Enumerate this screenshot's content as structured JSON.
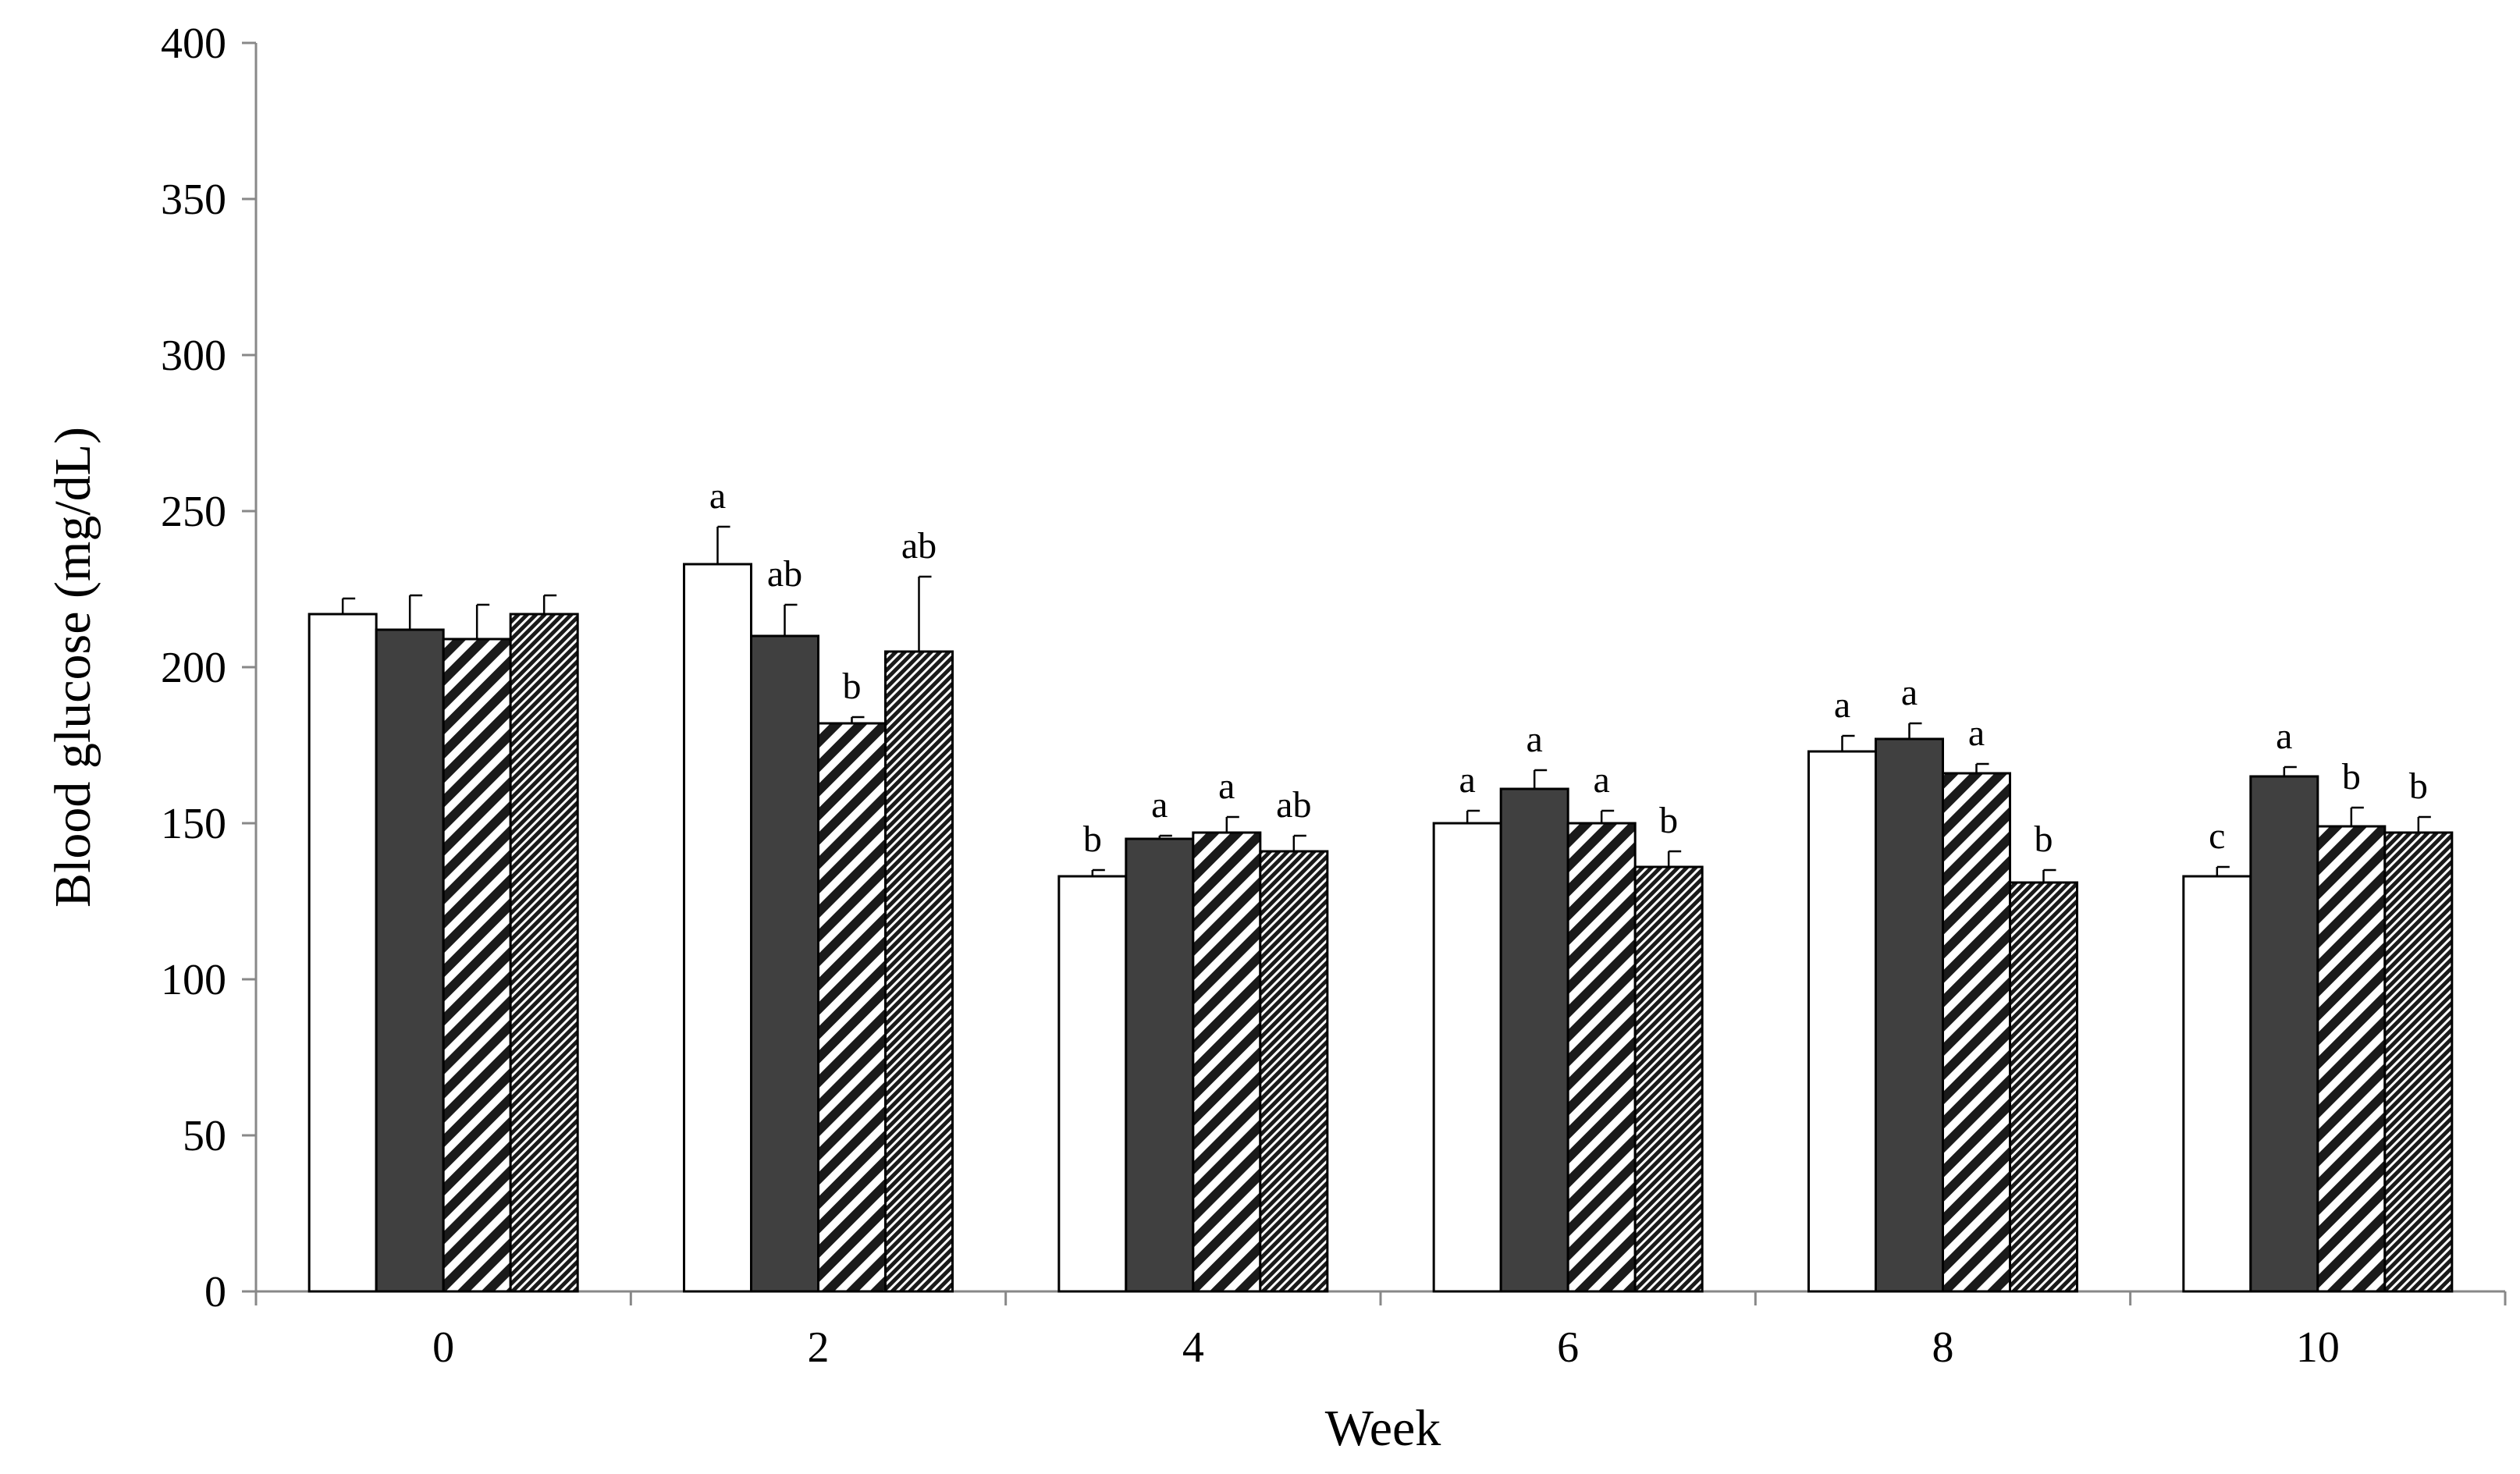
{
  "chart_data": {
    "type": "bar",
    "xlabel": "Week",
    "ylabel": "Blood glucose (mg/dL)",
    "ylim": [
      0,
      400
    ],
    "yticks": [
      0,
      50,
      100,
      150,
      200,
      250,
      300,
      350,
      400
    ],
    "grid": false,
    "legend": "none",
    "categories": [
      "0",
      "2",
      "4",
      "6",
      "8",
      "10"
    ],
    "series": [
      {
        "fill": "white",
        "values": [
          217,
          233,
          133,
          150,
          173,
          133
        ],
        "errors": [
          5,
          12,
          2,
          4,
          5,
          3
        ],
        "labels": [
          "",
          "a",
          "b",
          "a",
          "a",
          "c"
        ]
      },
      {
        "fill": "dark",
        "values": [
          212,
          210,
          145,
          161,
          177,
          165
        ],
        "errors": [
          11,
          10,
          1,
          6,
          5,
          3
        ],
        "labels": [
          "",
          "ab",
          "a",
          "a",
          "a",
          "a"
        ]
      },
      {
        "fill": "diagonal-hatch",
        "values": [
          209,
          182,
          147,
          150,
          166,
          149
        ],
        "errors": [
          11,
          2,
          5,
          4,
          3,
          6
        ],
        "labels": [
          "",
          "b",
          "a",
          "a",
          "a",
          "b"
        ]
      },
      {
        "fill": "dense-hatch",
        "values": [
          217,
          205,
          141,
          136,
          131,
          147
        ],
        "errors": [
          6,
          24,
          5,
          5,
          4,
          5
        ],
        "labels": [
          "",
          "ab",
          "ab",
          "b",
          "b",
          "b"
        ]
      }
    ],
    "colors": {
      "white": "#ffffff",
      "dark": "#404040",
      "hatch_fg": "#1a1a1a",
      "axis": "#888888",
      "outline": "#000000"
    }
  }
}
